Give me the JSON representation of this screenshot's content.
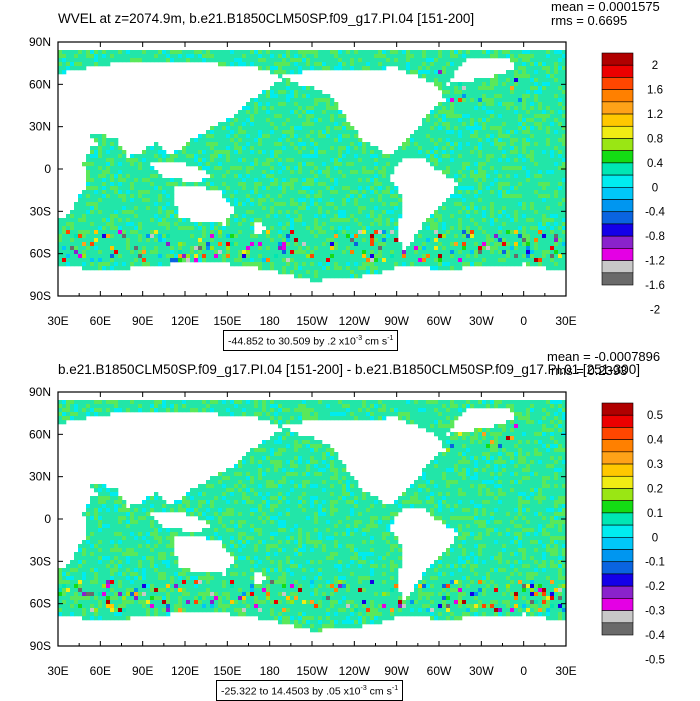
{
  "chart_data": [
    {
      "type": "heatmap",
      "title": "WVEL at z=2074.9m, b.e21.B1850CLM50SP.f09_g17.PI.04 [151-200]",
      "stats": {
        "mean": "mean = 0.0001575",
        "rms": "rms = 0.6695"
      },
      "x_ticks": [
        "30E",
        "60E",
        "90E",
        "120E",
        "150E",
        "180",
        "150W",
        "120W",
        "90W",
        "60W",
        "30W",
        "0",
        "30E"
      ],
      "y_ticks": [
        "90N",
        "60N",
        "30N",
        "0",
        "30S",
        "60S",
        "90S"
      ],
      "colorbar": {
        "labels": [
          "2",
          "1.6",
          "1.2",
          "0.8",
          "0.4",
          "0",
          "-0.4",
          "-0.8",
          "-1.2",
          "-1.6",
          "-2"
        ],
        "min": -2,
        "max": 2
      },
      "range_text": {
        "prefix": "-44.852 to 30.509 by .2 x10",
        "exp": "-3",
        "unit": " cm s",
        "unit_exp": "-1"
      }
    },
    {
      "type": "heatmap",
      "title": "b.e21.B1850CLM50SP.f09_g17.PI.04 [151-200] - b.e21.B1850CLM50SP.f09_g17.PI.01 [251-300]",
      "stats": {
        "mean": "mean = -0.0007896",
        "rms": "rms = 0.2393"
      },
      "x_ticks": [
        "30E",
        "60E",
        "90E",
        "120E",
        "150E",
        "180",
        "150W",
        "120W",
        "90W",
        "60W",
        "30W",
        "0",
        "30E"
      ],
      "y_ticks": [
        "90N",
        "60N",
        "30N",
        "0",
        "30S",
        "60S",
        "90S"
      ],
      "colorbar": {
        "labels": [
          "0.5",
          "0.4",
          "0.3",
          "0.2",
          "0.1",
          "0",
          "-0.1",
          "-0.2",
          "-0.3",
          "-0.4",
          "-0.5"
        ],
        "min": -0.5,
        "max": 0.5
      },
      "range_text": {
        "prefix": "-25.322 to 14.4503 by .05 x10",
        "exp": "-3",
        "unit": " cm s",
        "unit_exp": "-1"
      }
    }
  ],
  "colors": {
    "palette": [
      "#6a6a6a",
      "#c8c8c8",
      "#e400e4",
      "#8a22cc",
      "#1400e8",
      "#0a64e0",
      "#0096f0",
      "#00c8f8",
      "#00ecf0",
      "#00e6b4",
      "#14dc14",
      "#9ae614",
      "#f0ec14",
      "#ffc800",
      "#ffa218",
      "#ff8000",
      "#ff4600",
      "#ec0000",
      "#b00000"
    ],
    "ocean_base": "#22e6a8",
    "ocean_alt": "#5ae85a"
  }
}
